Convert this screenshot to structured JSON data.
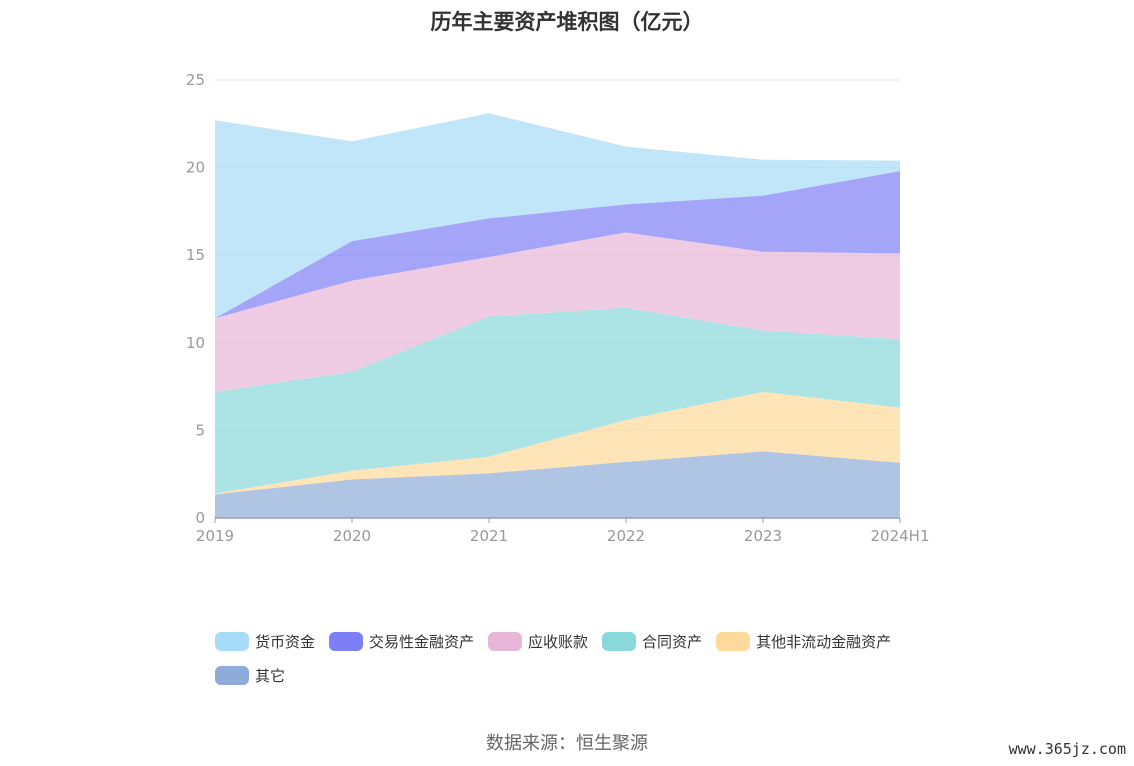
{
  "chart_data": {
    "type": "area",
    "title": "历年主要资产堆积图（亿元）",
    "stacked": true,
    "categories": [
      "2019",
      "2020",
      "2021",
      "2022",
      "2023",
      "2024H1"
    ],
    "ylim": [
      0,
      25
    ],
    "yticks": [
      0,
      5,
      10,
      15,
      20,
      25
    ],
    "grid": true,
    "legend_position": "bottom",
    "series": [
      {
        "name": "其它",
        "color": "#8fabd9",
        "values": [
          1.35,
          2.2,
          2.55,
          3.2,
          3.8,
          3.15
        ]
      },
      {
        "name": "其他非流动金融资产",
        "color": "#ffd99a",
        "values": [
          0.05,
          0.5,
          0.95,
          2.4,
          3.4,
          3.15
        ]
      },
      {
        "name": "合同资产",
        "color": "#89d9da",
        "values": [
          5.8,
          5.65,
          8.0,
          6.4,
          3.5,
          3.9
        ]
      },
      {
        "name": "应收账款",
        "color": "#e8b7d8",
        "values": [
          4.2,
          5.2,
          3.4,
          4.3,
          4.5,
          4.9
        ]
      },
      {
        "name": "交易性金融资产",
        "color": "#7e7ff5",
        "values": [
          0.0,
          2.25,
          2.2,
          1.6,
          3.2,
          4.7
        ]
      },
      {
        "name": "货币资金",
        "color": "#a6dcf8",
        "values": [
          11.3,
          5.7,
          6.0,
          3.3,
          2.05,
          0.6
        ]
      }
    ],
    "legend_order": [
      "货币资金",
      "交易性金融资产",
      "应收账款",
      "合同资产",
      "其他非流动金融资产",
      "其它"
    ]
  },
  "footer": {
    "source": "数据来源：恒生聚源",
    "watermark": "www.365jz.com"
  }
}
